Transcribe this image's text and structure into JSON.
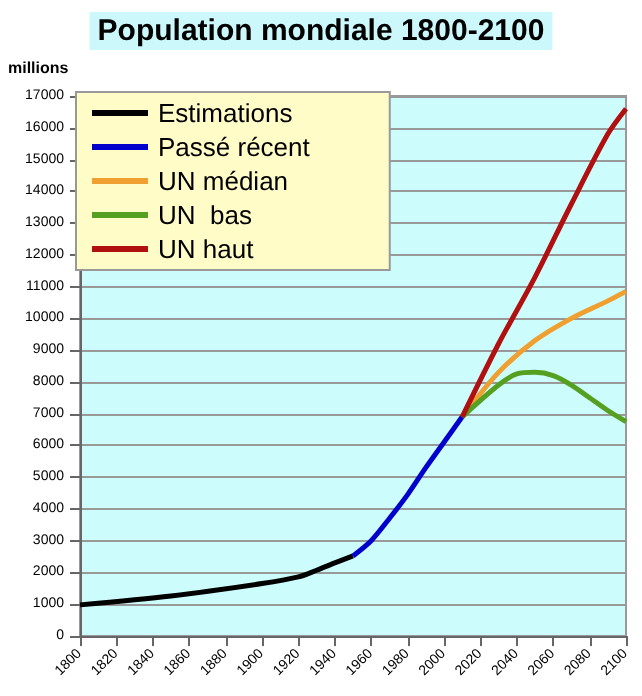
{
  "chart_data": {
    "type": "line",
    "title": "Population mondiale 1800-2100",
    "ylabel": "millions",
    "xlim": [
      1800,
      2100
    ],
    "xticks": [
      1800,
      1820,
      1840,
      1860,
      1880,
      1900,
      1920,
      1940,
      1960,
      1980,
      2000,
      2020,
      2040,
      2060,
      2080,
      2100
    ],
    "ylim": [
      0,
      17000
    ],
    "yticks": [
      0,
      1000,
      2000,
      3000,
      4000,
      5000,
      6000,
      7000,
      8000,
      9000,
      10000,
      11000,
      12000,
      13000,
      14000,
      15000,
      16000,
      17000
    ],
    "grid": "y",
    "legend": "top left",
    "marker": "none",
    "line_style": "solid",
    "series": [
      {
        "name": "Estimations",
        "color": "#000000",
        "x": [
          1800,
          1850,
          1900,
          1920,
          1930,
          1940,
          1950
        ],
        "values": [
          980,
          1260,
          1650,
          1860,
          2070,
          2300,
          2520
        ]
      },
      {
        "name": "Passé récent",
        "color": "#0000cc",
        "x": [
          1950,
          1960,
          1970,
          1980,
          1990,
          2000,
          2010
        ],
        "values": [
          2520,
          3000,
          3700,
          4450,
          5300,
          6100,
          6900
        ]
      },
      {
        "name": "UN médian",
        "color": "#f0a030",
        "x": [
          2010,
          2030,
          2050,
          2070,
          2090,
          2100
        ],
        "values": [
          6900,
          8300,
          9300,
          10000,
          10550,
          10850
        ]
      },
      {
        "name": "UN  bas",
        "color": "#55a020",
        "x": [
          2010,
          2030,
          2040,
          2050,
          2060,
          2070,
          2080,
          2090,
          2100
        ],
        "values": [
          6900,
          7900,
          8250,
          8300,
          8200,
          7900,
          7500,
          7100,
          6750
        ]
      },
      {
        "name": "UN haut",
        "color": "#b01010",
        "x": [
          2010,
          2030,
          2050,
          2070,
          2090,
          2100
        ],
        "values": [
          6900,
          9200,
          11300,
          13600,
          15800,
          16600
        ]
      }
    ]
  }
}
